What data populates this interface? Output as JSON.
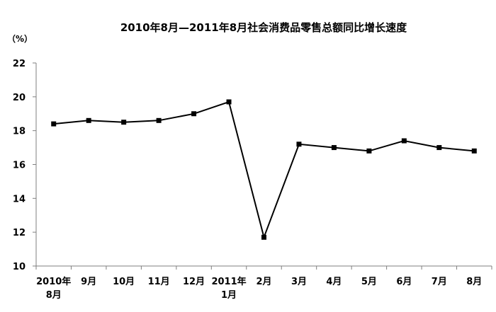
{
  "chart_data": {
    "type": "line",
    "title": "2010年8月—2011年8月社会消费品零售总额同比增长速度",
    "ylabel": "（%）",
    "xlabel": "",
    "ylim": [
      10,
      22
    ],
    "yticks": [
      10,
      12,
      14,
      16,
      18,
      20,
      22
    ],
    "grid": false,
    "categories": [
      [
        "2010年",
        "8月"
      ],
      [
        "9月"
      ],
      [
        "10月"
      ],
      [
        "11月"
      ],
      [
        "12月"
      ],
      [
        "2011年",
        "1月"
      ],
      [
        "2月"
      ],
      [
        "3月"
      ],
      [
        "4月"
      ],
      [
        "5月"
      ],
      [
        "6月"
      ],
      [
        "7月"
      ],
      [
        "8月"
      ]
    ],
    "series": [
      {
        "values": [
          18.4,
          18.6,
          18.5,
          18.6,
          19.0,
          19.7,
          11.7,
          17.2,
          17.0,
          16.8,
          17.4,
          17.0,
          16.8
        ]
      }
    ],
    "colors": {
      "line": "#000000",
      "axis": "#7f7f7f"
    }
  }
}
